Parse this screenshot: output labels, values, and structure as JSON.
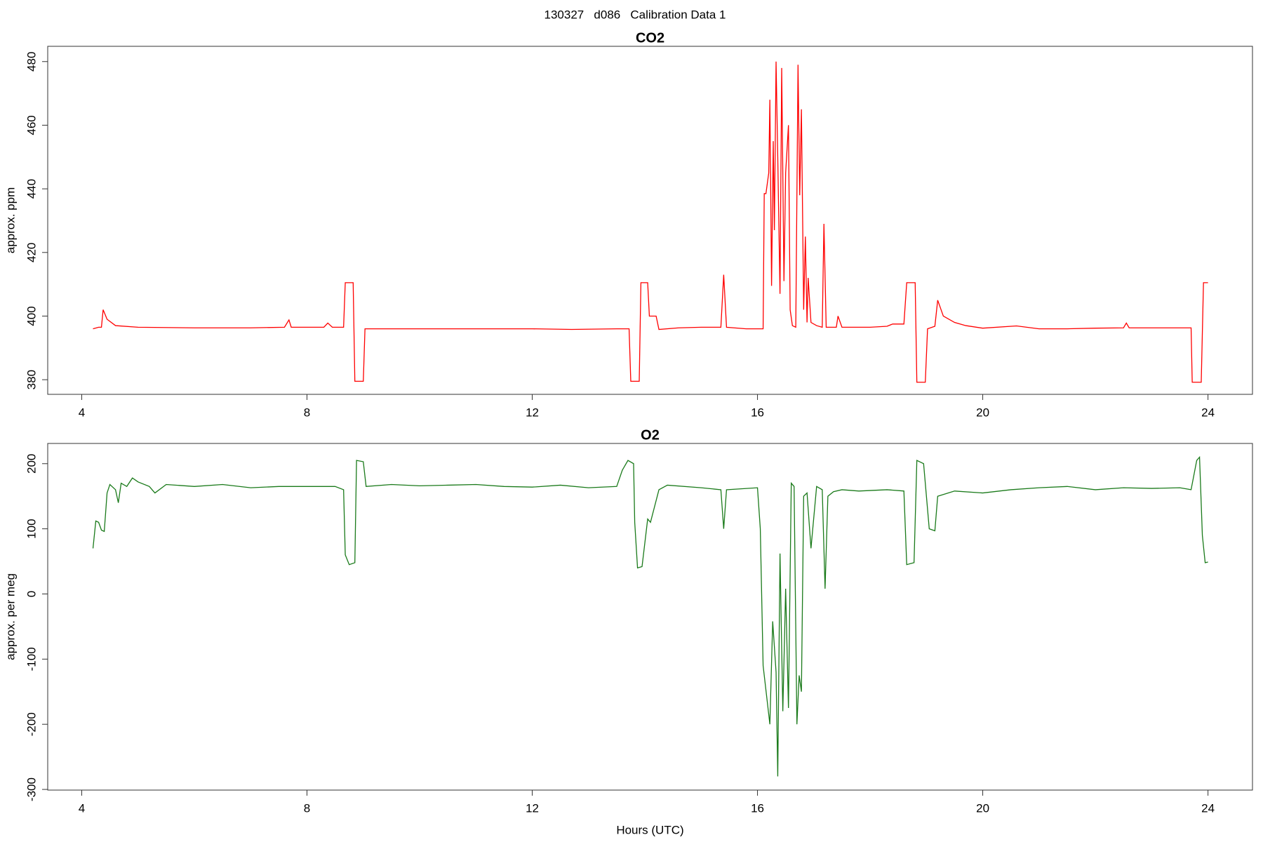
{
  "title": "130327   d086   Calibration Data 1",
  "chart_data": [
    {
      "type": "line",
      "title": "CO2",
      "ylabel": "approx. ppm",
      "xlim": [
        3.396,
        24.79
      ],
      "xticks": [
        4,
        8,
        12,
        16,
        20,
        24
      ],
      "ylim": [
        375.4,
        484.8
      ],
      "yticks": [
        380,
        400,
        420,
        440,
        460,
        480
      ],
      "x": [
        4.2,
        4.3,
        4.35,
        4.38,
        4.45,
        4.6,
        5,
        6,
        7,
        7.6,
        7.68,
        7.72,
        8.3,
        8.37,
        8.45,
        8.65,
        8.68,
        8.82,
        8.85,
        9.0,
        9.03,
        10,
        11,
        12,
        12.7,
        13.5,
        13.72,
        13.75,
        13.9,
        13.93,
        14.05,
        14.08,
        14.2,
        14.25,
        14.6,
        15,
        15.35,
        15.4,
        15.45,
        15.8,
        16.1,
        16.12,
        16.15,
        16.2,
        16.22,
        16.25,
        16.28,
        16.3,
        16.33,
        16.36,
        16.4,
        16.43,
        16.47,
        16.5,
        16.55,
        16.58,
        16.62,
        16.68,
        16.72,
        16.75,
        16.78,
        16.82,
        16.85,
        16.88,
        16.9,
        16.95,
        17.05,
        17.15,
        17.18,
        17.22,
        17.4,
        17.43,
        17.5,
        18,
        18.3,
        18.4,
        18.6,
        18.65,
        18.8,
        18.83,
        18.98,
        19.02,
        19.15,
        19.2,
        19.3,
        19.5,
        19.7,
        20,
        20.6,
        21,
        21.5,
        22,
        22.5,
        22.55,
        22.6,
        23,
        23.7,
        23.72,
        23.88,
        23.92,
        24.0
      ],
      "series": [
        {
          "name": "CO2",
          "color": "#ff0000",
          "values": [
            396,
            396.5,
            396.5,
            402,
            399,
            397,
            396.5,
            396.3,
            396.3,
            396.5,
            398.8,
            396.5,
            396.5,
            397.8,
            396.5,
            396.5,
            410.5,
            410.5,
            379.5,
            379.5,
            396,
            396,
            396,
            396,
            395.8,
            396,
            396,
            379.5,
            379.5,
            410.5,
            410.5,
            400,
            400,
            395.8,
            396.3,
            396.5,
            396.5,
            413,
            396.5,
            396,
            396,
            438.5,
            438.5,
            445,
            468,
            409.5,
            455,
            427,
            480,
            450,
            407,
            478,
            411,
            445,
            460,
            402,
            397,
            396.5,
            479,
            438,
            465,
            402,
            425,
            398,
            412,
            398,
            397,
            396.5,
            429,
            396.5,
            396.5,
            400,
            396.5,
            396.5,
            396.8,
            397.5,
            397.5,
            410.5,
            410.5,
            379.2,
            379.2,
            396,
            396.8,
            405,
            400,
            398,
            397,
            396.2,
            396.9,
            396,
            396,
            396.2,
            396.3,
            397.8,
            396.3,
            396.3,
            396.3,
            379.2,
            379.2,
            410.5,
            410.5
          ]
        }
      ]
    },
    {
      "type": "line",
      "title": "O2",
      "ylabel": "approx. per meg",
      "xlabel": "Hours (UTC)",
      "xlim": [
        3.396,
        24.79
      ],
      "xticks": [
        4,
        8,
        12,
        16,
        20,
        24
      ],
      "ylim": [
        -301,
        231
      ],
      "yticks": [
        -300,
        -200,
        -100,
        0,
        100,
        200
      ],
      "x": [
        4.2,
        4.25,
        4.3,
        4.35,
        4.4,
        4.45,
        4.5,
        4.6,
        4.65,
        4.7,
        4.8,
        4.9,
        5,
        5.2,
        5.3,
        5.5,
        6,
        6.5,
        7,
        7.5,
        8,
        8.5,
        8.65,
        8.68,
        8.75,
        8.85,
        8.88,
        9.0,
        9.05,
        9.5,
        10,
        10.5,
        11,
        11.5,
        12,
        12.5,
        13,
        13.5,
        13.6,
        13.7,
        13.8,
        13.82,
        13.87,
        13.95,
        14.05,
        14.1,
        14.25,
        14.4,
        15,
        15.35,
        15.4,
        15.45,
        16,
        16.05,
        16.1,
        16.22,
        16.27,
        16.33,
        16.36,
        16.4,
        16.45,
        16.5,
        16.55,
        16.6,
        16.65,
        16.7,
        16.74,
        16.78,
        16.82,
        16.88,
        16.95,
        17.05,
        17.15,
        17.2,
        17.25,
        17.35,
        17.5,
        17.8,
        18.3,
        18.6,
        18.65,
        18.78,
        18.83,
        18.95,
        19.05,
        19.15,
        19.2,
        19.5,
        20,
        20.5,
        21,
        21.5,
        22,
        22.5,
        23,
        23.5,
        23.7,
        23.8,
        23.85,
        23.9,
        23.95,
        24.0
      ],
      "series": [
        {
          "name": "O2",
          "color": "#1a7a1a",
          "values": [
            70,
            112,
            110,
            98,
            96,
            155,
            168,
            160,
            140,
            170,
            165,
            178,
            172,
            165,
            155,
            168,
            165,
            168,
            163,
            165,
            165,
            165,
            160,
            60,
            45,
            48,
            205,
            203,
            165,
            168,
            166,
            167,
            168,
            165,
            164,
            167,
            163,
            165,
            190,
            205,
            200,
            110,
            40,
            42,
            115,
            110,
            160,
            167,
            163,
            160,
            100,
            160,
            163,
            100,
            -110,
            -200,
            -42,
            -120,
            -280,
            62,
            -180,
            8,
            -175,
            170,
            165,
            -200,
            -125,
            -150,
            150,
            155,
            70,
            165,
            160,
            8,
            150,
            157,
            160,
            158,
            160,
            158,
            45,
            48,
            205,
            200,
            100,
            97,
            150,
            158,
            155,
            160,
            163,
            165,
            160,
            163,
            162,
            163,
            160,
            205,
            210,
            90,
            48,
            49
          ]
        }
      ]
    }
  ]
}
